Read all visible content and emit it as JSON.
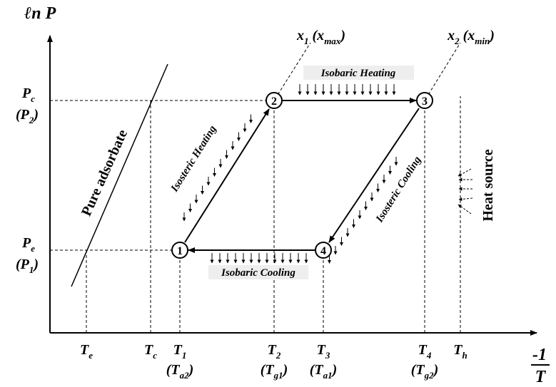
{
  "y_axis": {
    "label": [
      {
        "text": "ℓn P"
      }
    ]
  },
  "x_axis": {
    "numerator": "-1",
    "denominator": "T"
  },
  "y_labels": [
    {
      "lines": [
        [
          {
            "text": "P"
          },
          {
            "text": "c",
            "sub": true
          }
        ],
        [
          {
            "text": "(P"
          },
          {
            "text": "2",
            "sub": true
          },
          {
            "text": ")"
          }
        ]
      ]
    },
    {
      "lines": [
        [
          {
            "text": "P"
          },
          {
            "text": "e",
            "sub": true
          }
        ],
        [
          {
            "text": "(P"
          },
          {
            "text": "1",
            "sub": true
          },
          {
            "text": ")"
          }
        ]
      ]
    }
  ],
  "x_labels": [
    {
      "lines": [
        [
          {
            "text": "T"
          },
          {
            "text": "e",
            "sub": true
          }
        ]
      ]
    },
    {
      "lines": [
        [
          {
            "text": "T"
          },
          {
            "text": "c",
            "sub": true
          }
        ]
      ]
    },
    {
      "lines": [
        [
          {
            "text": "T"
          },
          {
            "text": "1",
            "sub": true
          }
        ],
        [
          {
            "text": "(T"
          },
          {
            "text": "a2",
            "sub": true
          },
          {
            "text": ")"
          }
        ]
      ]
    },
    {
      "lines": [
        [
          {
            "text": "T"
          },
          {
            "text": "2",
            "sub": true
          }
        ],
        [
          {
            "text": "(T"
          },
          {
            "text": "g1",
            "sub": true
          },
          {
            "text": ")"
          }
        ]
      ]
    },
    {
      "lines": [
        [
          {
            "text": "T"
          },
          {
            "text": "3",
            "sub": true
          }
        ],
        [
          {
            "text": "(T"
          },
          {
            "text": "a1",
            "sub": true
          },
          {
            "text": ")"
          }
        ]
      ]
    },
    {
      "lines": [
        [
          {
            "text": "T"
          },
          {
            "text": "4",
            "sub": true
          }
        ],
        [
          {
            "text": "(T"
          },
          {
            "text": "g2",
            "sub": true
          },
          {
            "text": ")"
          }
        ]
      ]
    },
    {
      "lines": [
        [
          {
            "text": "T"
          },
          {
            "text": "h",
            "sub": true
          }
        ]
      ]
    }
  ],
  "isosteres": [
    {
      "label": [
        {
          "text": "x"
        },
        {
          "text": "1",
          "sub": true
        },
        {
          "text": " (x"
        },
        {
          "text": "max",
          "sub": true
        },
        {
          "text": ")"
        }
      ]
    },
    {
      "label": [
        {
          "text": "x"
        },
        {
          "text": "2",
          "sub": true
        },
        {
          "text": " (x"
        },
        {
          "text": "min",
          "sub": true
        },
        {
          "text": ")"
        }
      ]
    }
  ],
  "nodes": [
    {
      "label": "1"
    },
    {
      "label": "2"
    },
    {
      "label": "3"
    },
    {
      "label": "4"
    }
  ],
  "pure_adsorbate": "Pure adsorbate",
  "processes": {
    "isobaric_heating": "Isobaric Heating",
    "isosteric_heating": "Isosteric Heating",
    "isosteric_cooling": "Isosteric Cooling",
    "isobaric_cooling": "Isobaric Cooling"
  },
  "heat_source": "Heat source"
}
